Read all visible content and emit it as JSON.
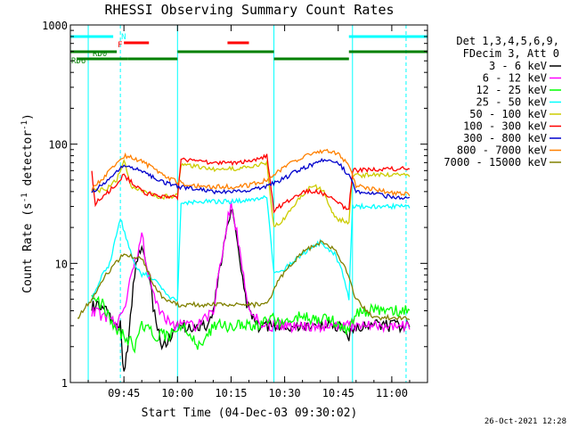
{
  "chart_data": {
    "type": "line",
    "title": "RHESSI Observing Summary Count Rates",
    "xlabel": "Start Time (04-Dec-03 09:30:02)",
    "ylabel": "Count Rate (s",
    "ylabel_sup": "-1",
    "ylabel_tail": " detector",
    "ylabel_tail_sup": "-1",
    "ylabel_close": ")",
    "yscale": "log",
    "ylim": [
      1,
      1000
    ],
    "xlim": [
      "09:30",
      "11:10"
    ],
    "grid": false,
    "x_ticks": [
      "09:45",
      "10:00",
      "10:15",
      "10:30",
      "10:45",
      "11:00"
    ],
    "y_ticks": [
      "1",
      "10",
      "100",
      "1000"
    ],
    "legend_header": [
      "Det 1,3,4,5,6,9,",
      "FDecim 3, Att 0"
    ],
    "legend_position": "right",
    "footer": "26-Oct-2021 12:28",
    "series": [
      {
        "name": "3 - 6 keV",
        "color": "#000000",
        "points": [
          [
            "09:36",
            4.5
          ],
          [
            "09:40",
            4
          ],
          [
            "09:44",
            3
          ],
          [
            "09:45",
            1.2
          ],
          [
            "09:46",
            2
          ],
          [
            "09:48",
            8
          ],
          [
            "09:50",
            15
          ],
          [
            "09:52",
            8
          ],
          [
            "09:54",
            3
          ],
          [
            "09:56",
            2
          ],
          [
            "09:58",
            2.5
          ],
          [
            "10:00",
            3
          ],
          [
            "10:04",
            3
          ],
          [
            "10:08",
            3
          ],
          [
            "10:10",
            4
          ],
          [
            "10:13",
            15
          ],
          [
            "10:15",
            30
          ],
          [
            "10:17",
            15
          ],
          [
            "10:19",
            5
          ],
          [
            "10:22",
            3
          ],
          [
            "10:26",
            3
          ],
          [
            "10:30",
            3
          ],
          [
            "10:35",
            3
          ],
          [
            "10:40",
            3
          ],
          [
            "10:45",
            3
          ],
          [
            "10:48",
            2.5
          ],
          [
            "10:50",
            3
          ],
          [
            "10:55",
            3
          ],
          [
            "11:00",
            3
          ],
          [
            "11:05",
            3
          ]
        ]
      },
      {
        "name": "6 - 12 keV",
        "color": "#ff00ff",
        "points": [
          [
            "09:36",
            4
          ],
          [
            "09:40",
            3.5
          ],
          [
            "09:43",
            3
          ],
          [
            "09:45",
            4
          ],
          [
            "09:47",
            8
          ],
          [
            "09:50",
            17
          ],
          [
            "09:52",
            8
          ],
          [
            "09:55",
            4
          ],
          [
            "09:58",
            3
          ],
          [
            "10:00",
            3
          ],
          [
            "10:05",
            3
          ],
          [
            "10:10",
            4
          ],
          [
            "10:13",
            15
          ],
          [
            "10:15",
            33
          ],
          [
            "10:17",
            15
          ],
          [
            "10:20",
            4
          ],
          [
            "10:24",
            3
          ],
          [
            "10:28",
            3
          ],
          [
            "10:32",
            3
          ],
          [
            "10:36",
            3
          ],
          [
            "10:40",
            3
          ],
          [
            "10:44",
            3
          ],
          [
            "10:48",
            3
          ],
          [
            "10:52",
            3
          ],
          [
            "11:00",
            3
          ],
          [
            "11:05",
            3
          ]
        ]
      },
      {
        "name": "12 - 25 keV",
        "color": "#00ff00",
        "points": [
          [
            "09:36",
            5
          ],
          [
            "09:39",
            4.5
          ],
          [
            "09:42",
            3
          ],
          [
            "09:45",
            2.5
          ],
          [
            "09:48",
            2
          ],
          [
            "09:50",
            3
          ],
          [
            "09:54",
            2.5
          ],
          [
            "09:58",
            2.5
          ],
          [
            "10:02",
            3
          ],
          [
            "10:06",
            2
          ],
          [
            "10:10",
            3
          ],
          [
            "10:14",
            3
          ],
          [
            "10:18",
            3
          ],
          [
            "10:22",
            3
          ],
          [
            "10:26",
            3.5
          ],
          [
            "10:30",
            3
          ],
          [
            "10:34",
            3.5
          ],
          [
            "10:38",
            3.5
          ],
          [
            "10:42",
            3.5
          ],
          [
            "10:46",
            3
          ],
          [
            "10:48",
            2.5
          ],
          [
            "10:50",
            4
          ],
          [
            "10:55",
            4
          ],
          [
            "11:00",
            4
          ],
          [
            "11:05",
            4
          ]
        ]
      },
      {
        "name": "25 - 50 keV",
        "color": "#00ffff",
        "points": [
          [
            "09:36",
            5
          ],
          [
            "09:38",
            7
          ],
          [
            "09:41",
            10
          ],
          [
            "09:44",
            24
          ],
          [
            "09:46",
            15
          ],
          [
            "09:48",
            10
          ],
          [
            "09:50",
            8
          ],
          [
            "09:52",
            8
          ],
          [
            "09:54",
            7
          ],
          [
            "09:56",
            6
          ],
          [
            "09:58",
            5
          ],
          [
            "10:00",
            5
          ],
          [
            "10:01",
            32
          ],
          [
            "10:05",
            33
          ],
          [
            "10:10",
            33
          ],
          [
            "10:15",
            33
          ],
          [
            "10:20",
            34
          ],
          [
            "10:25",
            36
          ],
          [
            "10:27",
            8
          ],
          [
            "10:30",
            9
          ],
          [
            "10:35",
            12
          ],
          [
            "10:40",
            15
          ],
          [
            "10:44",
            12
          ],
          [
            "10:46",
            9
          ],
          [
            "10:48",
            5
          ],
          [
            "10:49",
            30
          ],
          [
            "10:55",
            30
          ],
          [
            "11:00",
            30
          ],
          [
            "11:05",
            30
          ]
        ]
      },
      {
        "name": "50 - 100 keV",
        "color": "#cccc00",
        "points": [
          [
            "09:36",
            40
          ],
          [
            "09:40",
            42
          ],
          [
            "09:43",
            50
          ],
          [
            "09:45",
            75
          ],
          [
            "09:47",
            45
          ],
          [
            "09:50",
            40
          ],
          [
            "09:55",
            36
          ],
          [
            "10:00",
            37
          ],
          [
            "10:01",
            68
          ],
          [
            "10:05",
            65
          ],
          [
            "10:10",
            62
          ],
          [
            "10:15",
            62
          ],
          [
            "10:20",
            64
          ],
          [
            "10:25",
            70
          ],
          [
            "10:27",
            20
          ],
          [
            "10:30",
            24
          ],
          [
            "10:35",
            38
          ],
          [
            "10:38",
            45
          ],
          [
            "10:41",
            40
          ],
          [
            "10:44",
            24
          ],
          [
            "10:48",
            22
          ],
          [
            "10:49",
            55
          ],
          [
            "10:55",
            55
          ],
          [
            "11:00",
            55
          ],
          [
            "11:05",
            55
          ]
        ]
      },
      {
        "name": "100 - 300 keV",
        "color": "#ff0000",
        "points": [
          [
            "09:36",
            58
          ],
          [
            "09:37",
            32
          ],
          [
            "09:40",
            38
          ],
          [
            "09:43",
            47
          ],
          [
            "09:45",
            55
          ],
          [
            "09:47",
            48
          ],
          [
            "09:50",
            40
          ],
          [
            "09:55",
            36
          ],
          [
            "10:00",
            36
          ],
          [
            "10:01",
            75
          ],
          [
            "10:05",
            72
          ],
          [
            "10:10",
            70
          ],
          [
            "10:15",
            70
          ],
          [
            "10:20",
            72
          ],
          [
            "10:25",
            80
          ],
          [
            "10:27",
            28
          ],
          [
            "10:30",
            32
          ],
          [
            "10:35",
            40
          ],
          [
            "10:40",
            40
          ],
          [
            "10:45",
            32
          ],
          [
            "10:48",
            28
          ],
          [
            "10:49",
            60
          ],
          [
            "10:55",
            62
          ],
          [
            "11:00",
            62
          ],
          [
            "11:05",
            62
          ]
        ]
      },
      {
        "name": "300 - 800 keV",
        "color": "#0000cc",
        "points": [
          [
            "09:36",
            40
          ],
          [
            "09:40",
            48
          ],
          [
            "09:43",
            60
          ],
          [
            "09:45",
            66
          ],
          [
            "09:48",
            63
          ],
          [
            "09:52",
            55
          ],
          [
            "09:56",
            48
          ],
          [
            "10:00",
            44
          ],
          [
            "10:05",
            42
          ],
          [
            "10:10",
            40
          ],
          [
            "10:15",
            40
          ],
          [
            "10:20",
            41
          ],
          [
            "10:25",
            44
          ],
          [
            "10:30",
            52
          ],
          [
            "10:35",
            63
          ],
          [
            "10:40",
            72
          ],
          [
            "10:45",
            70
          ],
          [
            "10:48",
            55
          ],
          [
            "10:50",
            40
          ],
          [
            "10:55",
            38
          ],
          [
            "11:00",
            36
          ],
          [
            "11:05",
            36
          ]
        ]
      },
      {
        "name": "800 - 7000 keV",
        "color": "#ff8000",
        "points": [
          [
            "09:36",
            42
          ],
          [
            "09:40",
            55
          ],
          [
            "09:43",
            70
          ],
          [
            "09:45",
            80
          ],
          [
            "09:48",
            76
          ],
          [
            "09:52",
            66
          ],
          [
            "09:56",
            55
          ],
          [
            "10:00",
            48
          ],
          [
            "10:05",
            45
          ],
          [
            "10:10",
            44
          ],
          [
            "10:15",
            44
          ],
          [
            "10:20",
            45
          ],
          [
            "10:25",
            50
          ],
          [
            "10:30",
            64
          ],
          [
            "10:35",
            78
          ],
          [
            "10:40",
            88
          ],
          [
            "10:45",
            84
          ],
          [
            "10:48",
            65
          ],
          [
            "10:50",
            45
          ],
          [
            "10:55",
            42
          ],
          [
            "11:00",
            39
          ],
          [
            "11:05",
            38
          ]
        ]
      },
      {
        "name": "7000 - 15000 keV",
        "color": "#808000",
        "points": [
          [
            "09:32",
            3.5
          ],
          [
            "09:36",
            5
          ],
          [
            "09:40",
            8
          ],
          [
            "09:45",
            12
          ],
          [
            "09:50",
            11
          ],
          [
            "09:53",
            7
          ],
          [
            "09:56",
            5
          ],
          [
            "10:00",
            4.5
          ],
          [
            "10:05",
            4.5
          ],
          [
            "10:10",
            4.5
          ],
          [
            "10:15",
            4.5
          ],
          [
            "10:20",
            4.5
          ],
          [
            "10:25",
            4.5
          ],
          [
            "10:28",
            7
          ],
          [
            "10:32",
            10
          ],
          [
            "10:36",
            13
          ],
          [
            "10:40",
            15
          ],
          [
            "10:44",
            13
          ],
          [
            "10:47",
            9
          ],
          [
            "10:50",
            5
          ],
          [
            "10:55",
            3.5
          ],
          [
            "11:00",
            3.5
          ],
          [
            "11:05",
            3.5
          ]
        ]
      }
    ],
    "state_flags": [
      {
        "label": "N",
        "color": "#00ffff",
        "segments": [
          [
            "09:30",
            "09:42"
          ],
          [
            "10:48",
            "11:10"
          ]
        ]
      },
      {
        "label": "F",
        "color": "#ff0000",
        "segments": [
          [
            "09:45",
            "09:52"
          ],
          [
            "10:14",
            "10:20"
          ]
        ]
      },
      {
        "label": "RD0",
        "color": "#008000",
        "segments": [
          [
            "09:30",
            "09:43"
          ],
          [
            "10:00",
            "10:27"
          ],
          [
            "10:48",
            "11:10"
          ]
        ]
      },
      {
        "label": "RD6",
        "color": "#008000",
        "segments": [
          [
            "09:32",
            "09:46"
          ],
          [
            "09:46",
            "10:00"
          ],
          [
            "10:27",
            "10:48"
          ]
        ]
      }
    ],
    "vertical_markers": [
      {
        "time": "09:35",
        "style": "solid"
      },
      {
        "time": "09:44",
        "style": "dashed"
      },
      {
        "time": "10:00",
        "style": "solid"
      },
      {
        "time": "10:27",
        "style": "solid"
      },
      {
        "time": "10:49",
        "style": "solid"
      },
      {
        "time": "11:04",
        "style": "dashed"
      }
    ]
  }
}
